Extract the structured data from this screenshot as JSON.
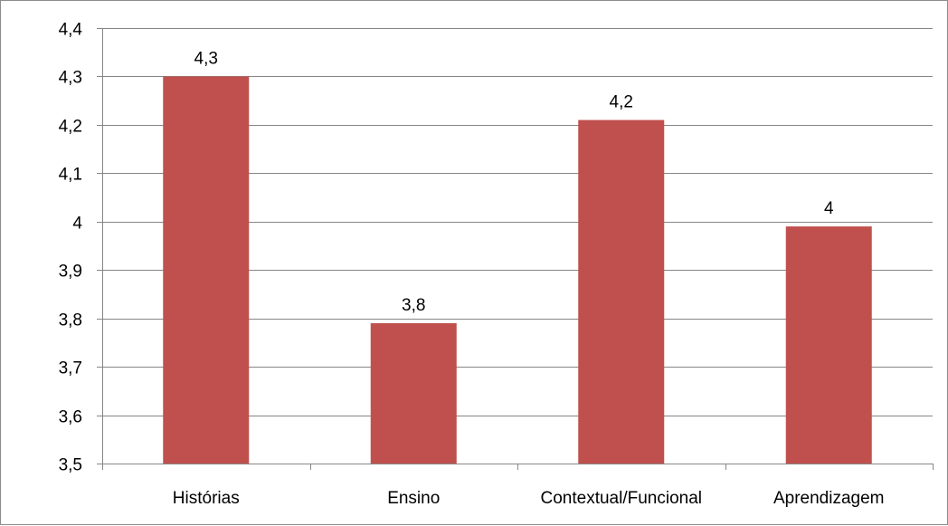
{
  "chart_data": {
    "type": "bar",
    "title": "",
    "xlabel": "",
    "ylabel": "",
    "categories": [
      "Histórias",
      "Ensino",
      "Contextual/Funcional",
      "Aprendizagem"
    ],
    "values": [
      4.3,
      3.79,
      4.21,
      3.99
    ],
    "data_labels": [
      "4,3",
      "3,8",
      "4,2",
      "4"
    ],
    "ylim": [
      3.5,
      4.4
    ],
    "yticks": [
      3.5,
      3.6,
      3.7,
      3.8,
      3.9,
      4.0,
      4.1,
      4.2,
      4.3,
      4.4
    ],
    "ytick_labels": [
      "3,5",
      "3,6",
      "3,7",
      "3,8",
      "3,9",
      "4",
      "4,1",
      "4,2",
      "4,3",
      "4,4"
    ],
    "grid": true,
    "legend": "none",
    "bar_color": "#c0504d",
    "gridline_color": "#868686",
    "axis_color": "#868686"
  }
}
